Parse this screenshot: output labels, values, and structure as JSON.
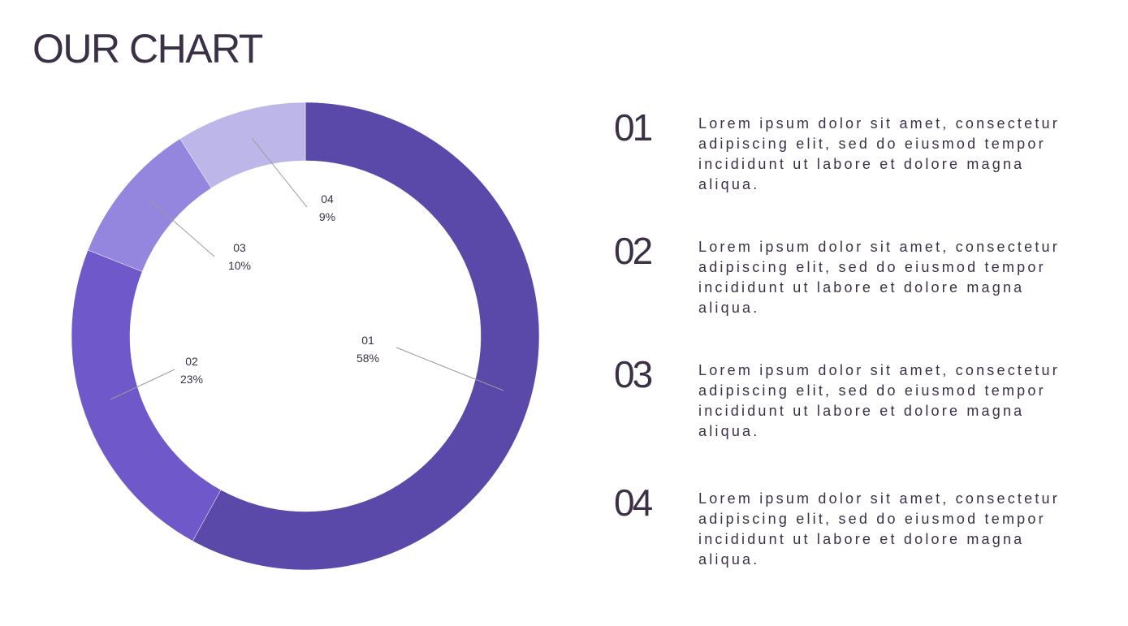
{
  "title": "OUR CHART",
  "chart_data": {
    "type": "pie",
    "donut": true,
    "categories": [
      "01",
      "02",
      "03",
      "04"
    ],
    "values": [
      58,
      23,
      10,
      9
    ],
    "labels": [
      "58%",
      "23%",
      "10%",
      "9%"
    ],
    "colors": [
      "#5a49a8",
      "#6f58c9",
      "#9485de",
      "#bdb6e8"
    ],
    "title": "",
    "legend": "none"
  },
  "items": [
    {
      "number": "01",
      "text": "Lorem ipsum dolor sit amet, consectetur adipiscing elit, sed do eiusmod tempor incididunt ut labore et dolore magna aliqua."
    },
    {
      "number": "02",
      "text": "Lorem ipsum dolor sit amet, consectetur adipiscing elit, sed do eiusmod tempor incididunt ut labore et dolore magna aliqua."
    },
    {
      "number": "03",
      "text": "Lorem ipsum dolor sit amet, consectetur adipiscing elit, sed do eiusmod tempor incididunt ut labore et dolore magna aliqua."
    },
    {
      "number": "04",
      "text": "Lorem ipsum dolor sit amet, consectetur adipiscing elit, sed do eiusmod tempor incididunt ut labore et dolore magna aliqua."
    }
  ]
}
